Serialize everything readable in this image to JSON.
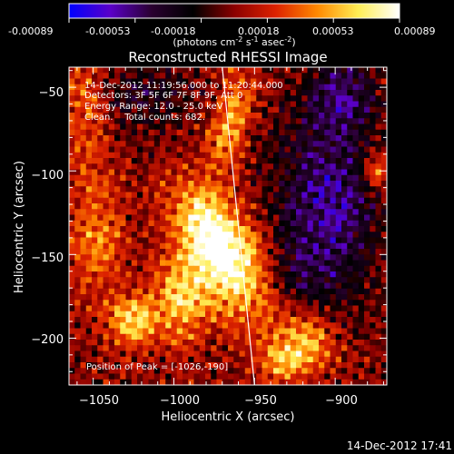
{
  "colorbar": {
    "tick_labels": [
      "-0.00089",
      "-0.00053",
      "-0.00018",
      "0.00018",
      "0.00053",
      "0.00089"
    ],
    "unit_line": "(photons cm^-2 s^-1 asec^-2)",
    "unit_html": {
      "main": "(photons cm",
      "e1": "-2",
      "s": " s",
      "e2": "-1",
      "asec": " asec",
      "e3": "-2",
      "close": ")"
    },
    "range": [
      -0.00089,
      0.00089
    ],
    "colors": [
      "#0000ff",
      "#5a00c8",
      "#2a0030",
      "#000000",
      "#8b0000",
      "#dd2200",
      "#ff8800",
      "#ffee55",
      "#ffffff"
    ]
  },
  "chart_data": {
    "type": "heatmap",
    "title": "Reconstructed RHESSI Image",
    "xlabel": "Heliocentric X (arcsec)",
    "ylabel": "Heliocentric Y (arcsec)",
    "xlim": [
      -1065,
      -868
    ],
    "ylim": [
      -228,
      -38
    ],
    "xticks": [
      -1050,
      -1000,
      -950,
      -900
    ],
    "yticks": [
      -50,
      -100,
      -150,
      -200
    ],
    "xtick_labels": [
      "−1050",
      "−1000",
      "−950",
      "−900"
    ],
    "ytick_labels": [
      "−50",
      "−100",
      "−150",
      "−200"
    ],
    "annotations": [
      "14-Dec-2012 11:19:56.000 to 11:20:44.000",
      "Detectors: 3F 5F 6F 7F 8F 9F, Att 0",
      "Energy Range: 12.0 - 25.0 keV",
      "Clean.    Total counts: 682."
    ],
    "peak_label": "Position of Peak = [-1026,-190]",
    "peak_position": [
      -1026,
      -190
    ],
    "limb_line": [
      [
        -970,
        -38
      ],
      [
        -950,
        -228
      ]
    ],
    "emission_regions": [
      {
        "x": -960,
        "y": -160,
        "sx": 16,
        "sy": 30,
        "amp": 1.0,
        "rot": -0.55
      },
      {
        "x": -980,
        "y": -135,
        "sx": 12,
        "sy": 22,
        "amp": 0.7,
        "rot": -0.5
      },
      {
        "x": -995,
        "y": -175,
        "sx": 12,
        "sy": 18,
        "amp": 0.85,
        "rot": 0.0
      },
      {
        "x": -1025,
        "y": -190,
        "sx": 10,
        "sy": 10,
        "amp": 0.9,
        "rot": 0.0
      },
      {
        "x": -918,
        "y": -200,
        "sx": 13,
        "sy": 14,
        "amp": 0.85,
        "rot": 0.0
      },
      {
        "x": -965,
        "y": -70,
        "sx": 8,
        "sy": 22,
        "amp": 0.7,
        "rot": 0.2
      },
      {
        "x": -1055,
        "y": -60,
        "sx": 10,
        "sy": 25,
        "amp": 0.5,
        "rot": 0.0
      },
      {
        "x": -1048,
        "y": -140,
        "sx": 12,
        "sy": 25,
        "amp": 0.55,
        "rot": 0.0
      },
      {
        "x": -935,
        "y": -215,
        "sx": 10,
        "sy": 8,
        "amp": 0.55,
        "rot": 0.0
      },
      {
        "x": -875,
        "y": -100,
        "sx": 6,
        "sy": 8,
        "amp": 0.7,
        "rot": 0.0
      }
    ],
    "negative_regions": [
      {
        "x": -905,
        "y": -120,
        "sx": 22,
        "sy": 40,
        "amp": 0.8
      },
      {
        "x": -895,
        "y": -55,
        "sx": 15,
        "sy": 15,
        "amp": 0.55
      },
      {
        "x": -1020,
        "y": -55,
        "sx": 22,
        "sy": 15,
        "amp": 0.4
      },
      {
        "x": -930,
        "y": -175,
        "sx": 18,
        "sy": 20,
        "amp": 0.4
      }
    ]
  },
  "footer": {
    "timestamp": "14-Dec-2012 17:41"
  }
}
